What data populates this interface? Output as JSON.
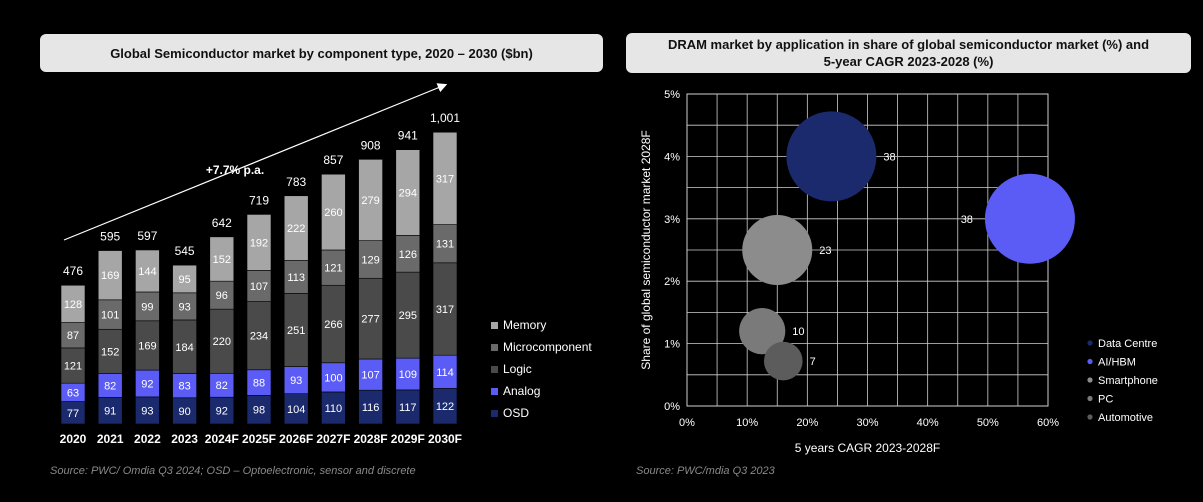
{
  "left_title": "Global Semiconductor market by component type, 2020 – 2030 ($bn)",
  "left_source": "Source:  PWC/ Omdia Q3 2024; OSD – Optoelectronic, sensor and discrete",
  "right_title_line1": "DRAM market by application in share of global semiconductor market (%) and",
  "right_title_line2": "5-year CAGR 2023-2028 (%)",
  "right_source": "Source: PWC/mdia Q3 2023",
  "colors": {
    "osd": "#1a2a6c",
    "analog": "#5b5bf5",
    "logic": "#4a4a4a",
    "micro": "#6a6a6a",
    "memory": "#a6a6a6",
    "data_centre": "#1a2a6c",
    "ai_hbm": "#5b5bf5",
    "smartphone": "#8c8c8c",
    "pc": "#7a7a7a",
    "automotive": "#5c5c5c"
  },
  "chart_data": [
    {
      "type": "bar",
      "stacked": true,
      "title": "Global Semiconductor market by component type, 2020 – 2030 ($bn)",
      "categories": [
        "2020",
        "2021",
        "2022",
        "2023",
        "2024F",
        "2025F",
        "2026F",
        "2027F",
        "2028F",
        "2029F",
        "2030F"
      ],
      "totals": [
        "476",
        "595",
        "597",
        "545",
        "642",
        "719",
        "783",
        "857",
        "908",
        "941",
        "1,001"
      ],
      "total_values": [
        476,
        595,
        597,
        545,
        642,
        719,
        783,
        857,
        908,
        941,
        1001
      ],
      "annotation": "+7.7% p.a.",
      "series": [
        {
          "name": "OSD",
          "key": "osd",
          "values": [
            77,
            91,
            93,
            90,
            92,
            98,
            104,
            110,
            116,
            117,
            122
          ]
        },
        {
          "name": "Analog",
          "key": "analog",
          "values": [
            63,
            82,
            92,
            83,
            82,
            88,
            93,
            100,
            107,
            109,
            114
          ]
        },
        {
          "name": "Logic",
          "key": "logic",
          "values": [
            121,
            152,
            169,
            184,
            220,
            234,
            251,
            266,
            277,
            295,
            317
          ]
        },
        {
          "name": "Microcomponent",
          "key": "micro",
          "values": [
            87,
            101,
            99,
            93,
            96,
            107,
            113,
            121,
            129,
            126,
            131
          ]
        },
        {
          "name": "Memory",
          "key": "memory",
          "values": [
            128,
            169,
            144,
            95,
            152,
            192,
            222,
            260,
            279,
            294,
            317
          ]
        }
      ],
      "legend_order": [
        "Memory",
        "Microcomponent",
        "Logic",
        "Analog",
        "OSD"
      ],
      "legend_position": "right"
    },
    {
      "type": "scatter",
      "bubble": true,
      "title": "DRAM market by application in share of global semiconductor market (%) and 5-year CAGR 2023-2028 (%)",
      "xlabel": "5 years CAGR 2023-2028F",
      "ylabel": "Share of global semiconductor market 2028F",
      "xlim": [
        0,
        60
      ],
      "ylim": [
        0,
        5
      ],
      "xticks": [
        "0%",
        "10%",
        "20%",
        "30%",
        "40%",
        "50%",
        "60%"
      ],
      "yticks": [
        "0%",
        "1%",
        "2%",
        "3%",
        "4%",
        "5%"
      ],
      "grid": true,
      "legend_position": "right",
      "points": [
        {
          "name": "Data Centre",
          "key": "data_centre",
          "x": 24,
          "y": 4.0,
          "size": 38,
          "label": "38"
        },
        {
          "name": "AI/HBM",
          "key": "ai_hbm",
          "x": 57,
          "y": 3.0,
          "size": 38,
          "label": "38"
        },
        {
          "name": "Smartphone",
          "key": "smartphone",
          "x": 15,
          "y": 2.5,
          "size": 23,
          "label": "23"
        },
        {
          "name": "PC",
          "key": "pc",
          "x": 12.5,
          "y": 1.2,
          "size": 10,
          "label": "10"
        },
        {
          "name": "Automotive",
          "key": "automotive",
          "x": 16,
          "y": 0.72,
          "size": 7,
          "label": "7"
        }
      ]
    }
  ]
}
